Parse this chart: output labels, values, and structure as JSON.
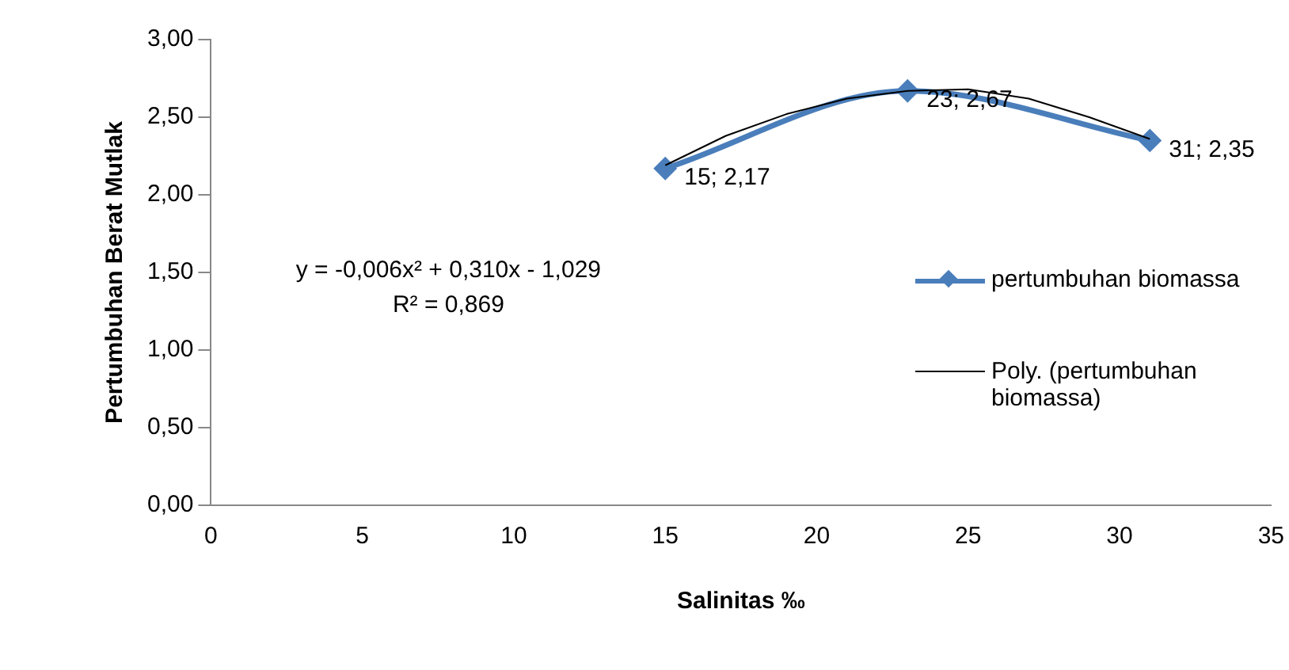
{
  "chart_data": {
    "type": "line",
    "xlabel": "Salinitas ‰",
    "ylabel": "Pertumbuhan Berat Mutlak",
    "xlim": [
      0,
      35
    ],
    "xticks": [
      0,
      5,
      10,
      15,
      20,
      25,
      30,
      35
    ],
    "ylim": [
      0,
      3
    ],
    "yticks": [
      {
        "value": 0,
        "label": "0,00"
      },
      {
        "value": 0.5,
        "label": "0,50"
      },
      {
        "value": 1,
        "label": "1,00"
      },
      {
        "value": 1.5,
        "label": "1,50"
      },
      {
        "value": 2,
        "label": "2,00"
      },
      {
        "value": 2.5,
        "label": "2,50"
      },
      {
        "value": 3,
        "label": "3,00"
      }
    ],
    "grid": false,
    "legend": "right",
    "series": [
      {
        "name": "pertumbuhan biomassa",
        "color": "#4a7ebb",
        "marker": "diamond",
        "x": [
          15,
          23,
          31
        ],
        "values": [
          2.17,
          2.67,
          2.35
        ],
        "value_labels": [
          "15; 2,17",
          "23; 2,67",
          "31; 2,35"
        ]
      },
      {
        "name": "Poly. (pertumbuhan biomassa)",
        "color": "#000000",
        "marker": "none",
        "x": [
          15,
          17,
          19,
          21,
          23,
          25,
          27,
          29,
          31
        ],
        "values": [
          2.19,
          2.38,
          2.52,
          2.62,
          2.67,
          2.68,
          2.62,
          2.5,
          2.36
        ]
      }
    ],
    "annotations": [
      "y = -0,006x² + 0,310x - 1,029",
      "R² = 0,869"
    ]
  }
}
